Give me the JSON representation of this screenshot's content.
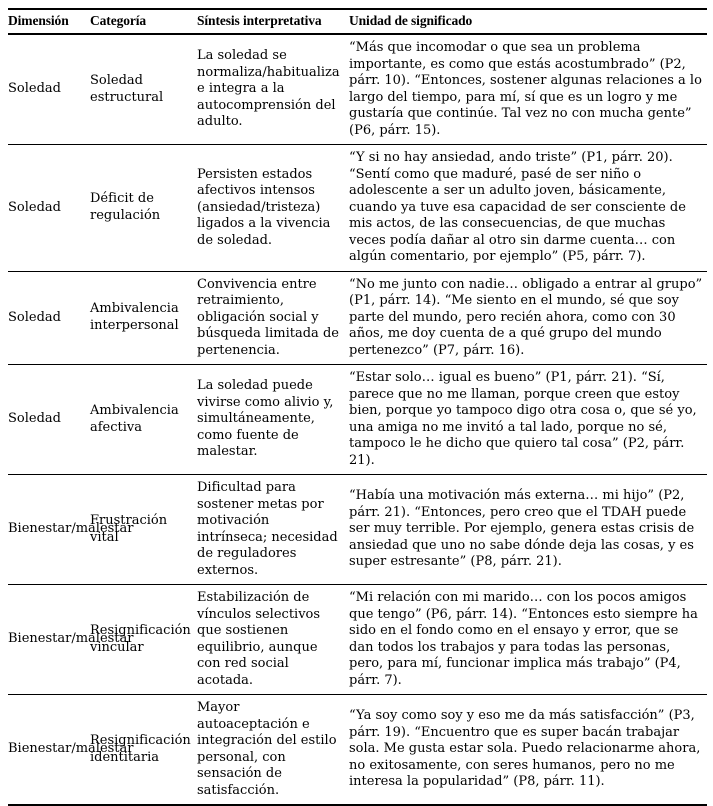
{
  "table": {
    "columns": [
      {
        "label": "Dimensión"
      },
      {
        "label": "Categoría"
      },
      {
        "label": "Síntesis interpretativa"
      },
      {
        "label": "Unidad de significado"
      }
    ],
    "rows": [
      {
        "dimension": "Soledad",
        "categoria": "Soledad estructural",
        "sintesis": "La soledad se normaliza/habitualiza e integra a la autocomprensión del adulto.",
        "unidad": "“Más que incomodar o que sea un problema importante, es como que estás acostumbrado” (P2, párr. 10). “Entonces, sostener algunas relaciones a lo largo del tiempo, para mí, sí que es un logro y me gustaría que continúe. Tal vez no con mucha gente” (P6, párr. 15)."
      },
      {
        "dimension": "Soledad",
        "categoria": "Déficit de regulación",
        "sintesis": "Persisten estados afectivos intensos (ansiedad/tristeza) ligados a la vivencia de soledad.",
        "unidad": "“Y si no hay ansiedad, ando triste” (P1, párr. 20). “Sentí como que maduré, pasé de ser niño o adolescente a ser un adulto joven, básicamente, cuando ya tuve esa capacidad de ser consciente de mis actos, de las consecuencias, de que muchas veces podía dañar al otro sin darme cuenta… con algún comentario, por ejemplo” (P5, párr. 7)."
      },
      {
        "dimension": "Soledad",
        "categoria": "Ambivalencia interpersonal",
        "sintesis": "Convivencia entre retraimiento, obligación social y búsqueda limitada de pertenencia.",
        "unidad": "“No me junto con nadie… obligado a entrar al grupo” (P1, párr. 14). “Me siento en el mundo, sé que soy parte del mundo, pero recién ahora, como con 30 años, me doy cuenta de a qué grupo del mundo pertenezco” (P7, párr. 16)."
      },
      {
        "dimension": "Soledad",
        "categoria": "Ambivalencia afectiva",
        "sintesis": "La soledad puede vivirse como alivio y, simultáneamente, como fuente de malestar.",
        "unidad": "“Estar solo… igual es bueno” (P1, párr. 21). “Sí, parece que no me llaman, porque creen que estoy bien, porque yo tampoco digo otra cosa o, que sé yo, una amiga no me invitó a tal lado, porque no sé, tampoco le he dicho que quiero tal cosa” (P2, párr. 21)."
      },
      {
        "dimension": "Bienestar/malestar",
        "categoria": "Frustración vital",
        "sintesis": "Dificultad para sostener metas por motivación intrínseca; necesidad de reguladores externos.",
        "unidad": "“Había una motivación más externa… mi hijo” (P2, párr. 21). “Entonces, pero creo que el TDAH puede ser muy terrible. Por ejemplo, genera estas crisis de ansiedad que uno no sabe dónde deja las cosas, y es super estresante” (P8, párr. 21)."
      },
      {
        "dimension": "Bienestar/malestar",
        "categoria": "Resignificación vincular",
        "sintesis": "Estabilización de vínculos selectivos que sostienen equilibrio, aunque con red social acotada.",
        "unidad": "“Mi relación con mi marido… con los pocos amigos que tengo” (P6, párr. 14). “Entonces esto siempre ha sido en el fondo como en el ensayo y error, que se dan todos los trabajos y para todas las personas, pero, para mí, funcionar implica más trabajo” (P4, párr. 7)."
      },
      {
        "dimension": "Bienestar/malestar",
        "categoria": "Resignificación identitaria",
        "sintesis": "Mayor autoaceptación e integración del estilo personal, con sensación de satisfacción.",
        "unidad": "“Ya soy como soy y eso me da más satisfacción” (P3, párr. 19). “Encuentro que es super bacán trabajar sola. Me gusta estar sola. Puedo relacionarme ahora, no exitosamente, con seres humanos, pero no me interesa la popularidad” (P8, párr. 11)."
      }
    ]
  }
}
